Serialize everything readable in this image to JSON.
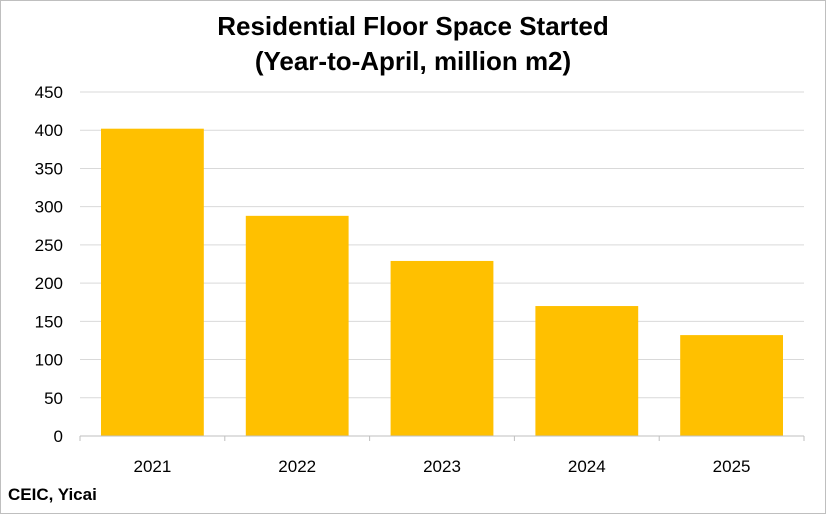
{
  "chart_data": {
    "type": "bar",
    "title_line1": "Residential Floor Space Started",
    "title_line2": "(Year-to-April, million m2)",
    "categories": [
      "2021",
      "2022",
      "2023",
      "2024",
      "2025"
    ],
    "values": [
      402,
      288,
      229,
      170,
      132
    ],
    "ylim": [
      0,
      450
    ],
    "yticks": [
      0,
      50,
      100,
      150,
      200,
      250,
      300,
      350,
      400,
      450
    ],
    "grid": true,
    "bar_color": "#FFC000",
    "grid_color": "#d9d9d9"
  },
  "source": "CEIC, Yicai"
}
